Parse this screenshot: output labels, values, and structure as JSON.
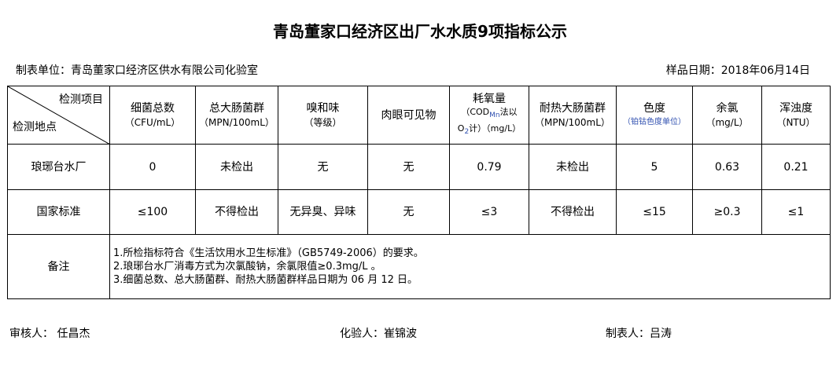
{
  "title": "青岛董家口经济区出厂水水质9项指标公示",
  "unit": "制表单位：青岛董家口经济区供水有限公司化验室",
  "sample_date": "样品日期：2018年06月14日",
  "table": {
    "corner_item": "检测项目",
    "corner_site": "检测地点",
    "headers": [
      {
        "name": "细菌总数",
        "unit": "（CFU/mL）"
      },
      {
        "name": "总大肠菌群",
        "unit": "（MPN/100mL）"
      },
      {
        "name": "嗅和味",
        "unit": "（等级）"
      },
      {
        "name": "肉眼可见物",
        "unit": ""
      },
      {
        "name": "耗氧量",
        "unit": "（COD",
        "unit_sub": "Mn",
        "unit2": "法以",
        "unit3": "O",
        "unit3_sub": "2",
        "unit4": "计）（mg/L）"
      },
      {
        "name": "耐热大肠菌群",
        "unit": "（MPN/100mL）"
      },
      {
        "name": "色度",
        "unit": "（铂钴色度单位）"
      },
      {
        "name": "余氯",
        "unit": "（mg/L）"
      },
      {
        "name": "浑浊度",
        "unit": "（NTU）"
      }
    ],
    "rows": [
      {
        "site": "琅琊台水厂",
        "values": [
          "0",
          "未检出",
          "无",
          "无",
          "0.79",
          "未检出",
          "5",
          "0.63",
          "0.21"
        ]
      },
      {
        "site": "国家标准",
        "values": [
          "≤100",
          "不得检出",
          "无异臭、异味",
          "无",
          "≤3",
          "不得检出",
          "≤15",
          "≥0.3",
          "≤1"
        ]
      }
    ],
    "notes_label": "备注",
    "notes": [
      "1.所检指标符合《生活饮用水卫生标准》（GB5749-2006）的要求。",
      "2.琅琊台水厂消毒方式为次氯酸钠，余氯限值≥0.3mg/L 。",
      "3.细菌总数、总大肠菌群、耐热大肠菌群样品日期为 06 月 12 日。"
    ]
  },
  "signatures": {
    "reviewer": "审核人：  任昌杰",
    "tester": "化验人：崔锦波",
    "maker": "制表人：吕涛"
  }
}
